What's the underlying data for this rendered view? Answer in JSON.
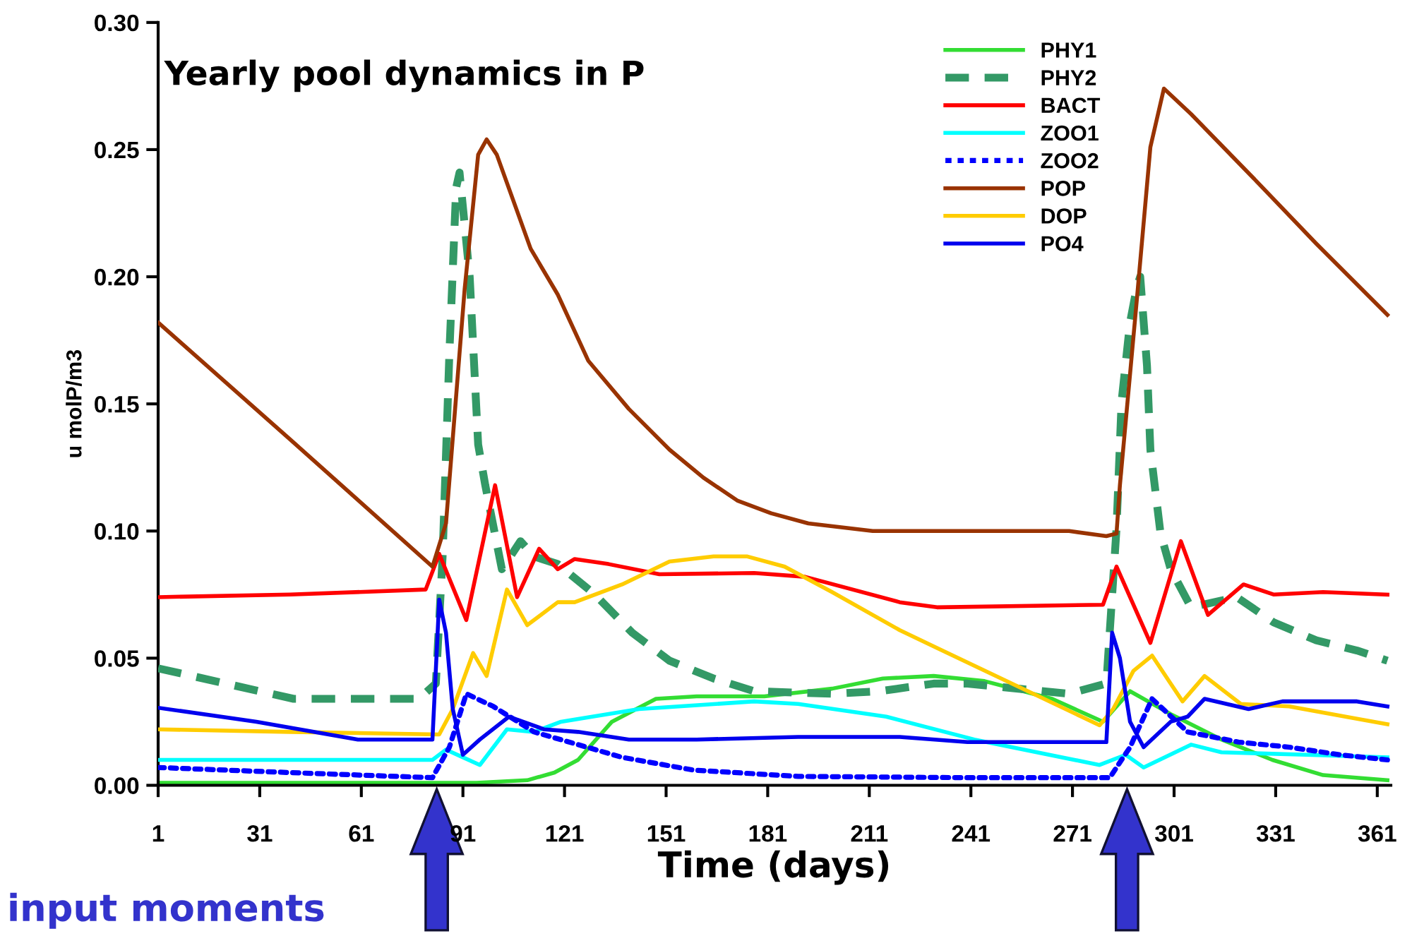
{
  "chart_data": {
    "type": "line",
    "title": "Yearly pool dynamics in P",
    "xlabel": "Time (days)",
    "ylabel": "u molP/m3",
    "xlim": [
      1,
      365
    ],
    "xticks": [
      1,
      31,
      61,
      91,
      121,
      151,
      181,
      211,
      241,
      271,
      301,
      331,
      361
    ],
    "ylim": [
      0,
      0.3
    ],
    "yticks": [
      {
        "value": 0,
        "label": "0.00"
      },
      {
        "value": 0.05,
        "label": "0.05"
      },
      {
        "value": 0.1,
        "label": "0.10"
      },
      {
        "value": 0.15,
        "label": "0.15"
      },
      {
        "value": 0.2,
        "label": "0.20"
      },
      {
        "value": 0.25,
        "label": "0.25"
      },
      {
        "value": 0.3,
        "label": "0.30"
      }
    ],
    "grid": false,
    "legend": "top right",
    "marker": "none",
    "series": [
      {
        "name": "PHY1",
        "color": "#33dd33",
        "line_style": "solid",
        "x": [
          1,
          95,
          110,
          118,
          125,
          135,
          148,
          160,
          180,
          200,
          215,
          230,
          245,
          265,
          280,
          288,
          300,
          315,
          330,
          345,
          364
        ],
        "values": [
          0.001,
          0.001,
          0.002,
          0.005,
          0.01,
          0.025,
          0.034,
          0.035,
          0.035,
          0.038,
          0.042,
          0.043,
          0.041,
          0.034,
          0.025,
          0.037,
          0.028,
          0.018,
          0.01,
          0.004,
          0.002
        ]
      },
      {
        "name": "PHY2",
        "color": "#339966",
        "line_style": "dashed",
        "x": [
          1,
          41,
          78,
          83,
          85,
          87,
          89,
          90,
          93,
          95.5,
          97.6,
          102.5,
          108,
          112,
          119,
          130,
          141,
          152,
          165,
          177,
          200,
          214,
          230,
          240,
          255,
          270,
          281,
          284,
          285.5,
          288,
          290,
          291,
          293,
          294,
          297,
          300,
          306,
          319.5,
          330.5,
          343,
          355,
          364
        ],
        "values": [
          0.046,
          0.034,
          0.034,
          0.04,
          0.09,
          0.17,
          0.235,
          0.241,
          0.2,
          0.134,
          0.118,
          0.085,
          0.096,
          0.09,
          0.087,
          0.075,
          0.06,
          0.049,
          0.042,
          0.037,
          0.036,
          0.037,
          0.04,
          0.04,
          0.038,
          0.036,
          0.04,
          0.101,
          0.151,
          0.182,
          0.196,
          0.2,
          0.165,
          0.132,
          0.099,
          0.085,
          0.07,
          0.074,
          0.064,
          0.057,
          0.053,
          0.049
        ]
      },
      {
        "name": "BACT",
        "color": "#ff0000",
        "line_style": "solid",
        "x": [
          1,
          40,
          80,
          84,
          92,
          100.5,
          107,
          113.5,
          119,
          124,
          134,
          149,
          177,
          192,
          220,
          231,
          280,
          284,
          294,
          303,
          311,
          321.5,
          330.5,
          345,
          364
        ],
        "values": [
          0.074,
          0.075,
          0.077,
          0.091,
          0.065,
          0.118,
          0.074,
          0.093,
          0.085,
          0.089,
          0.087,
          0.083,
          0.0835,
          0.082,
          0.072,
          0.07,
          0.071,
          0.086,
          0.056,
          0.096,
          0.067,
          0.079,
          0.075,
          0.076,
          0.075
        ]
      },
      {
        "name": "ZOO1",
        "color": "#00ffff",
        "line_style": "solid",
        "x": [
          1,
          82,
          86,
          91,
          96,
          104,
          112,
          120,
          143,
          177,
          190,
          216,
          242,
          279,
          286.7,
          292,
          306,
          315,
          340,
          364
        ],
        "values": [
          0.01,
          0.01,
          0.014,
          0.011,
          0.008,
          0.022,
          0.021,
          0.025,
          0.03,
          0.033,
          0.032,
          0.027,
          0.018,
          0.008,
          0.012,
          0.007,
          0.016,
          0.013,
          0.012,
          0.011
        ]
      },
      {
        "name": "ZOO2",
        "color": "#0000ff",
        "line_style": "dotted",
        "x": [
          1,
          40,
          82,
          87,
          92,
          100,
          112,
          138,
          159,
          190,
          240,
          282,
          288,
          294.5,
          305,
          320,
          335,
          350,
          364
        ],
        "values": [
          0.007,
          0.005,
          0.003,
          0.015,
          0.036,
          0.031,
          0.021,
          0.011,
          0.006,
          0.0035,
          0.003,
          0.003,
          0.015,
          0.034,
          0.021,
          0.017,
          0.015,
          0.012,
          0.01
        ]
      },
      {
        "name": "POP",
        "color": "#993300",
        "line_style": "solid",
        "x": [
          1,
          40,
          82,
          86,
          91.5,
          95.5,
          98,
          101,
          111,
          119,
          128,
          140,
          152,
          162,
          172,
          182,
          193,
          212,
          246,
          270,
          281,
          284,
          285,
          290,
          294,
          298,
          306,
          325,
          343,
          364
        ],
        "values": [
          0.182,
          0.136,
          0.086,
          0.103,
          0.195,
          0.248,
          0.254,
          0.248,
          0.211,
          0.193,
          0.167,
          0.148,
          0.132,
          0.121,
          0.112,
          0.107,
          0.103,
          0.1,
          0.1,
          0.1,
          0.098,
          0.099,
          0.118,
          0.191,
          0.251,
          0.274,
          0.264,
          0.238,
          0.213,
          0.185
        ]
      },
      {
        "name": "DOP",
        "color": "#ffcc00",
        "line_style": "solid",
        "x": [
          1,
          40,
          84,
          88,
          94,
          98,
          104,
          110,
          119,
          124,
          138,
          152,
          165,
          175,
          186,
          200,
          220,
          231,
          279,
          283,
          289,
          294.5,
          300,
          303.5,
          310,
          320.7,
          335,
          364
        ],
        "values": [
          0.022,
          0.021,
          0.02,
          0.03,
          0.052,
          0.043,
          0.077,
          0.063,
          0.072,
          0.072,
          0.079,
          0.088,
          0.09,
          0.09,
          0.086,
          0.076,
          0.061,
          0.054,
          0.0236,
          0.03,
          0.045,
          0.051,
          0.04,
          0.033,
          0.043,
          0.032,
          0.031,
          0.024
        ]
      },
      {
        "name": "PO4",
        "color": "#0000ee",
        "line_style": "solid",
        "x": [
          1,
          30,
          60,
          82,
          84,
          86,
          88,
          91,
          96,
          104.6,
          115,
          125,
          140,
          160,
          190,
          220,
          240,
          281,
          282.7,
          285,
          288,
          292,
          300,
          305,
          310,
          323,
          333,
          355,
          364
        ],
        "values": [
          0.0305,
          0.025,
          0.018,
          0.018,
          0.073,
          0.06,
          0.03,
          0.012,
          0.018,
          0.027,
          0.022,
          0.021,
          0.018,
          0.018,
          0.019,
          0.019,
          0.017,
          0.017,
          0.06,
          0.05,
          0.025,
          0.015,
          0.025,
          0.027,
          0.034,
          0.03,
          0.033,
          0.033,
          0.031
        ]
      }
    ],
    "annotations": [
      "input moments"
    ]
  }
}
